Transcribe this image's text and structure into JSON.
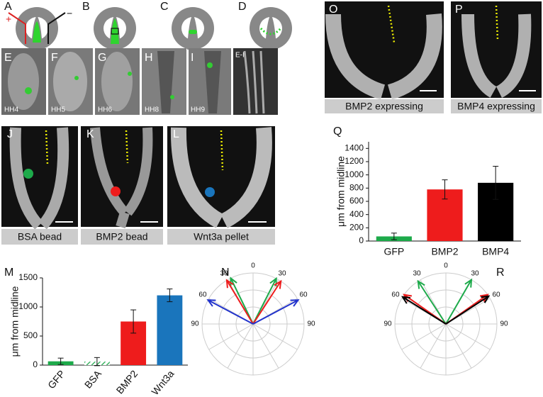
{
  "panels": {
    "A": "A",
    "B": "B",
    "C": "C",
    "D": "D",
    "plus": "+",
    "minus": "−",
    "E": "E",
    "F": "F",
    "G": "G",
    "H": "H",
    "I": "I",
    "EI": "E-I",
    "HH4": "HH4",
    "HH5": "HH5",
    "HH6": "HH6",
    "HH8": "HH8",
    "HH9": "HH9",
    "J": "J",
    "K": "K",
    "L": "L",
    "O": "O",
    "P": "P",
    "J_caption": "BSA bead",
    "K_caption": "BMP2 bead",
    "L_caption": "Wnt3a pellet",
    "O_caption": "BMP2 expressing",
    "P_caption": "BMP4 expressing"
  },
  "chart_data": [
    {
      "type": "bar",
      "label": "Q",
      "ylabel": "μm from midline",
      "categories": [
        "GFP",
        "BMP2",
        "BMP4"
      ],
      "values": [
        70,
        780,
        880
      ],
      "errors": [
        50,
        145,
        250
      ],
      "colors": [
        "#1daa4a",
        "#ee1c1c",
        "#000000"
      ],
      "hatch": [
        false,
        false,
        false
      ],
      "ylim": [
        0,
        1500
      ],
      "yticks": [
        0,
        200,
        400,
        600,
        800,
        1000,
        1200,
        1400
      ],
      "rotate_labels": false
    },
    {
      "type": "bar",
      "label": "M",
      "ylabel": "μm from midline",
      "categories": [
        "GFP",
        "BSA",
        "BMP2",
        "Wnt3a"
      ],
      "values": [
        65,
        60,
        750,
        1200
      ],
      "errors": [
        55,
        70,
        200,
        110
      ],
      "colors": [
        "#1daa4a",
        "#1daa4a",
        "#ee1c1c",
        "#1a75bc"
      ],
      "hatch": [
        false,
        true,
        false,
        false
      ],
      "ylim": [
        0,
        1500
      ],
      "yticks": [
        0,
        500,
        1000,
        1500
      ],
      "rotate_labels": true
    },
    {
      "type": "polar",
      "label": "N",
      "thetalim": [
        -90,
        90
      ],
      "thetaticks": [
        {
          "value": -90,
          "label": "90"
        },
        {
          "value": -60,
          "label": "60"
        },
        {
          "value": -30,
          "label": "30"
        },
        0,
        30,
        60,
        90
      ],
      "series": [
        {
          "color": "#1daa4a",
          "values": [
            -26,
            27
          ]
        },
        {
          "color": "#ee1c1c",
          "values": [
            -31,
            33
          ]
        },
        {
          "color": "#2233cc",
          "values": [
            -62,
            62
          ]
        }
      ]
    },
    {
      "type": "polar",
      "label": "R",
      "thetalim": [
        -90,
        90
      ],
      "thetaticks": [
        {
          "value": -90,
          "label": "90"
        },
        {
          "value": -60,
          "label": "60"
        },
        {
          "value": -30,
          "label": "30"
        },
        0,
        30,
        60,
        90
      ],
      "series": [
        {
          "color": "#1daa4a",
          "values": [
            -33,
            30
          ]
        },
        {
          "color": "#ee1c1c",
          "values": [
            -55,
            55
          ]
        },
        {
          "color": "#000000",
          "values": [
            -58,
            57
          ]
        }
      ]
    }
  ]
}
